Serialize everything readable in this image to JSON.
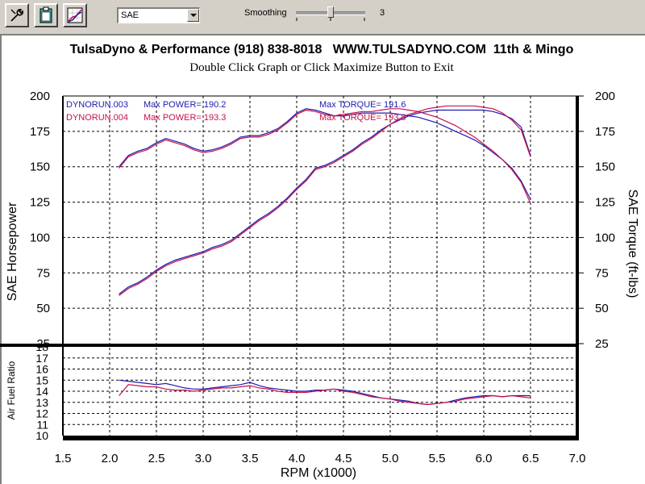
{
  "toolbar": {
    "buttons": [
      {
        "name": "wrench-icon"
      },
      {
        "name": "clipboard-icon"
      },
      {
        "name": "graph-icon"
      }
    ],
    "correction": "SAE",
    "smoothing_label": "Smoothing",
    "smoothing_value": "3"
  },
  "chart_data": {
    "type": "line",
    "title": "TulsaDyno & Performance (918) 838-8018   WWW.TULSADYNO.COM  11th & Mingo",
    "subtitle": "Double Click Graph or Click Maximize Button to Exit",
    "xlabel": "RPM (x1000)",
    "ylabel_left": "SAE Horsepower",
    "ylabel_right": "SAE Torque (ft-lbs)",
    "ylabel_lower": "Air Fuel Ratio",
    "xlim": [
      1.5,
      7.0
    ],
    "x_ticks": [
      "1.5",
      "2.0",
      "2.5",
      "3.0",
      "3.5",
      "4.0",
      "4.5",
      "5.0",
      "5.5",
      "6.0",
      "6.5",
      "7.0"
    ],
    "ylim_upper": [
      25,
      200
    ],
    "y_ticks_upper": [
      "200",
      "175",
      "150",
      "125",
      "100",
      "75",
      "50",
      "25"
    ],
    "ylim_lower": [
      10,
      18
    ],
    "y_ticks_lower": [
      "18",
      "17",
      "16",
      "15",
      "14",
      "13",
      "12",
      "11",
      "10"
    ],
    "grid": true,
    "legend": [
      {
        "run": "DYNORUN.003",
        "power_label": "Max POWER= 190.2",
        "torque_label": "Max TORQUE= 191.6",
        "color": "#1c1cae"
      },
      {
        "run": "DYNORUN.004",
        "power_label": "Max POWER= 193.3",
        "torque_label": "Max TORQUE= 193.8",
        "color": "#c8104a"
      }
    ],
    "series": [
      {
        "run": "DYNORUN.003",
        "quantity": "horsepower",
        "axis": "upper",
        "color": "#1c1cae",
        "x": [
          2.1,
          2.2,
          2.3,
          2.4,
          2.5,
          2.6,
          2.7,
          2.8,
          2.9,
          3.0,
          3.1,
          3.2,
          3.3,
          3.4,
          3.5,
          3.6,
          3.7,
          3.8,
          3.9,
          4.0,
          4.1,
          4.2,
          4.3,
          4.4,
          4.5,
          4.6,
          4.7,
          4.8,
          4.9,
          5.0,
          5.1,
          5.2,
          5.3,
          5.4,
          5.5,
          5.6,
          5.7,
          5.8,
          5.9,
          6.0,
          6.1,
          6.2,
          6.3,
          6.4,
          6.5
        ],
        "y": [
          60,
          65,
          68,
          72,
          77,
          81,
          84,
          86,
          88,
          90,
          93,
          95,
          98,
          103,
          108,
          113,
          117,
          122,
          128,
          135,
          141,
          149,
          151,
          154,
          158,
          162,
          167,
          171,
          176,
          180,
          183,
          186,
          188,
          189,
          190,
          190,
          190,
          190,
          190,
          190,
          189,
          187,
          184,
          178,
          158
        ]
      },
      {
        "run": "DYNORUN.004",
        "quantity": "horsepower",
        "axis": "upper",
        "color": "#c8104a",
        "x": [
          2.1,
          2.2,
          2.3,
          2.4,
          2.5,
          2.6,
          2.7,
          2.8,
          2.9,
          3.0,
          3.1,
          3.2,
          3.3,
          3.4,
          3.5,
          3.6,
          3.7,
          3.8,
          3.9,
          4.0,
          4.1,
          4.2,
          4.3,
          4.4,
          4.5,
          4.6,
          4.7,
          4.8,
          4.9,
          5.0,
          5.1,
          5.2,
          5.3,
          5.4,
          5.5,
          5.6,
          5.7,
          5.8,
          5.9,
          6.0,
          6.1,
          6.2,
          6.3,
          6.4,
          6.5
        ],
        "y": [
          59,
          64,
          67,
          71,
          76,
          80,
          83,
          85,
          87,
          89,
          92,
          94,
          97,
          102,
          107,
          112,
          116,
          121,
          127,
          134,
          140,
          148,
          150,
          153,
          157,
          161,
          166,
          170,
          175,
          180,
          184,
          187,
          189,
          191,
          192,
          193,
          193,
          193,
          193,
          192,
          191,
          188,
          183,
          176,
          157
        ]
      },
      {
        "run": "DYNORUN.003",
        "quantity": "torque",
        "axis": "upper",
        "color": "#1c1cae",
        "x": [
          2.1,
          2.2,
          2.3,
          2.4,
          2.5,
          2.6,
          2.7,
          2.8,
          2.9,
          3.0,
          3.1,
          3.2,
          3.3,
          3.4,
          3.5,
          3.6,
          3.7,
          3.8,
          3.9,
          4.0,
          4.1,
          4.2,
          4.3,
          4.4,
          4.5,
          4.6,
          4.7,
          4.8,
          4.9,
          5.0,
          5.1,
          5.2,
          5.3,
          5.4,
          5.5,
          5.6,
          5.7,
          5.8,
          5.9,
          6.0,
          6.1,
          6.2,
          6.3,
          6.4,
          6.5
        ],
        "y": [
          150,
          158,
          161,
          163,
          167,
          170,
          168,
          166,
          163,
          161,
          162,
          164,
          167,
          171,
          172,
          172,
          174,
          177,
          182,
          188,
          191,
          190,
          188,
          186,
          186,
          187,
          188,
          188,
          188,
          188,
          187,
          186,
          185,
          183,
          181,
          178,
          175,
          172,
          169,
          165,
          160,
          155,
          149,
          140,
          127
        ]
      },
      {
        "run": "DYNORUN.004",
        "quantity": "torque",
        "axis": "upper",
        "color": "#c8104a",
        "x": [
          2.1,
          2.2,
          2.3,
          2.4,
          2.5,
          2.6,
          2.7,
          2.8,
          2.9,
          3.0,
          3.1,
          3.2,
          3.3,
          3.4,
          3.5,
          3.6,
          3.7,
          3.8,
          3.9,
          4.0,
          4.1,
          4.2,
          4.3,
          4.4,
          4.5,
          4.6,
          4.7,
          4.8,
          4.9,
          5.0,
          5.1,
          5.2,
          5.3,
          5.4,
          5.5,
          5.6,
          5.7,
          5.8,
          5.9,
          6.0,
          6.1,
          6.2,
          6.3,
          6.4,
          6.5
        ],
        "y": [
          149,
          157,
          160,
          162,
          166,
          169,
          167,
          165,
          162,
          160,
          161,
          163,
          166,
          170,
          171,
          171,
          173,
          176,
          181,
          187,
          190,
          189,
          187,
          186,
          187,
          188,
          189,
          189,
          190,
          191,
          191,
          190,
          189,
          187,
          185,
          182,
          179,
          175,
          171,
          166,
          161,
          155,
          148,
          139,
          124
        ]
      },
      {
        "run": "DYNORUN.003",
        "quantity": "afr",
        "axis": "lower",
        "color": "#1c1cae",
        "x": [
          2.1,
          2.2,
          2.3,
          2.4,
          2.5,
          2.6,
          2.7,
          2.8,
          2.9,
          3.0,
          3.1,
          3.2,
          3.3,
          3.4,
          3.5,
          3.6,
          3.7,
          3.8,
          3.9,
          4.0,
          4.1,
          4.2,
          4.3,
          4.4,
          4.5,
          4.6,
          4.7,
          4.8,
          4.9,
          5.0,
          5.1,
          5.2,
          5.3,
          5.4,
          5.5,
          5.6,
          5.7,
          5.8,
          5.9,
          6.0,
          6.1,
          6.2,
          6.3,
          6.4,
          6.5
        ],
        "y": [
          15.0,
          14.9,
          14.8,
          14.7,
          14.6,
          14.7,
          14.5,
          14.3,
          14.2,
          14.2,
          14.3,
          14.4,
          14.5,
          14.6,
          14.8,
          14.5,
          14.3,
          14.2,
          14.1,
          14.0,
          14.0,
          14.1,
          14.1,
          14.2,
          14.1,
          14.0,
          13.8,
          13.6,
          13.4,
          13.3,
          13.2,
          13.1,
          12.9,
          12.8,
          12.9,
          13.0,
          13.2,
          13.4,
          13.5,
          13.6,
          13.6,
          13.5,
          13.6,
          13.6,
          13.6
        ]
      },
      {
        "run": "DYNORUN.004",
        "quantity": "afr",
        "axis": "lower",
        "color": "#c8104a",
        "x": [
          2.1,
          2.2,
          2.3,
          2.4,
          2.5,
          2.6,
          2.7,
          2.8,
          2.9,
          3.0,
          3.1,
          3.2,
          3.3,
          3.4,
          3.5,
          3.6,
          3.7,
          3.8,
          3.9,
          4.0,
          4.1,
          4.2,
          4.3,
          4.4,
          4.5,
          4.6,
          4.7,
          4.8,
          4.9,
          5.0,
          5.1,
          5.2,
          5.3,
          5.4,
          5.5,
          5.6,
          5.7,
          5.8,
          5.9,
          6.0,
          6.1,
          6.2,
          6.3,
          6.4,
          6.5
        ],
        "y": [
          13.6,
          14.6,
          14.5,
          14.4,
          14.4,
          14.2,
          14.1,
          14.1,
          14.0,
          14.1,
          14.2,
          14.3,
          14.3,
          14.4,
          14.5,
          14.3,
          14.2,
          14.0,
          13.9,
          13.9,
          13.9,
          14.0,
          14.1,
          14.2,
          14.0,
          13.9,
          13.7,
          13.5,
          13.4,
          13.3,
          13.1,
          13.0,
          12.9,
          12.8,
          12.9,
          13.0,
          13.1,
          13.3,
          13.4,
          13.5,
          13.6,
          13.5,
          13.6,
          13.5,
          13.4
        ]
      }
    ]
  }
}
